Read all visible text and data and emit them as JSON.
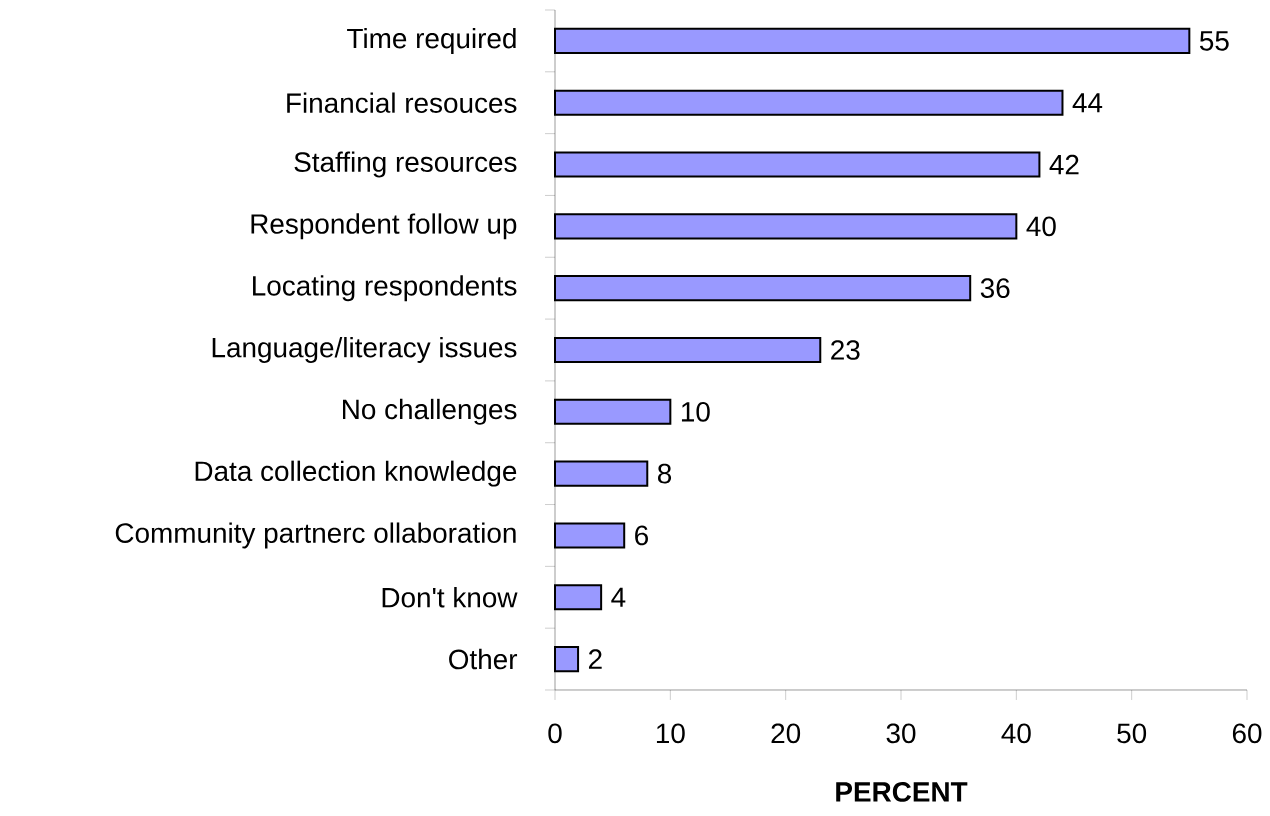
{
  "chart_data": {
    "type": "bar",
    "orientation": "horizontal",
    "xlabel": "PERCENT",
    "categories": [
      "Time required",
      "Financial resouces",
      "Staffing resources",
      "Respondent follow up",
      "Locating respondents",
      "Language/literacy issues",
      "No challenges",
      "Data collection knowledge",
      "Community partnerc ollaboration",
      "Don't know",
      "Other"
    ],
    "values": [
      55,
      44,
      42,
      40,
      36,
      23,
      10,
      8,
      6,
      4,
      2
    ],
    "color": "#9999ff",
    "xlim": [
      0,
      60
    ],
    "xticks": [
      0,
      10,
      20,
      30,
      40,
      50,
      60
    ],
    "data_labels": true
  }
}
